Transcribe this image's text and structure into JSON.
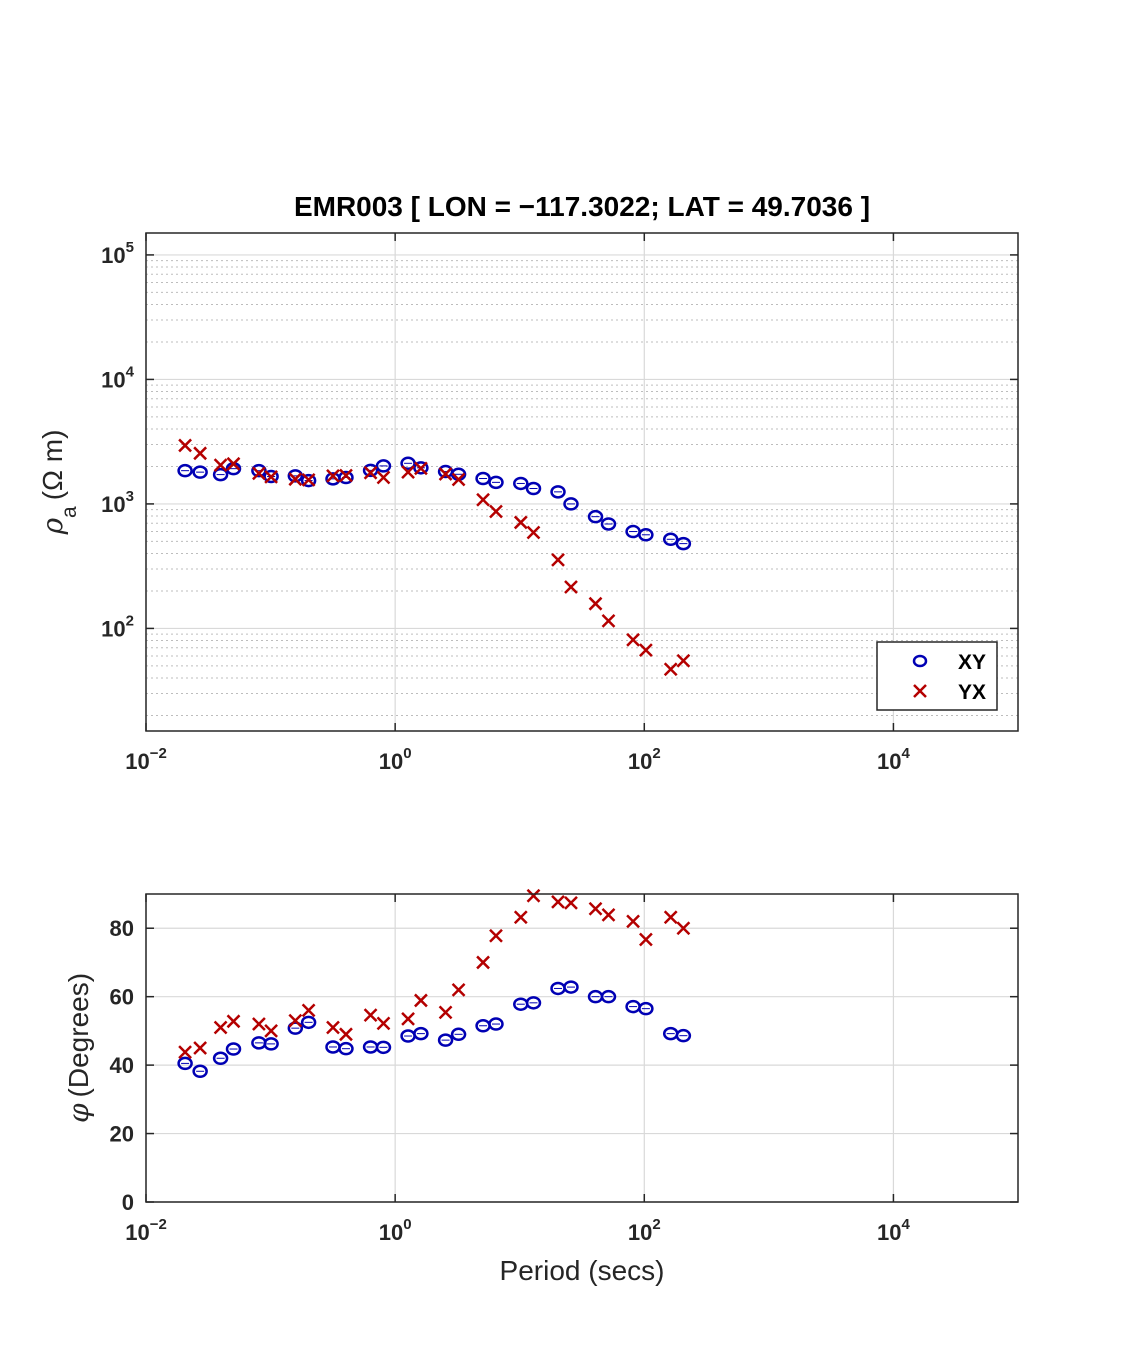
{
  "chart_data": [
    {
      "type": "scatter",
      "title": "EMR003 [ LON = −117.3022; LAT = 49.7036 ]",
      "xlabel": "",
      "ylabel_symbol": "ρ",
      "ylabel_subscript": "a",
      "ylabel_units": "(Ω m)",
      "x_scale": "log",
      "y_scale": "log",
      "xlim": [
        0.01,
        100000
      ],
      "ylim": [
        15,
        150000
      ],
      "xticks": [
        {
          "base": "10",
          "exp": "−2",
          "value": 0.01
        },
        {
          "base": "10",
          "exp": "0",
          "value": 1
        },
        {
          "base": "10",
          "exp": "2",
          "value": 100
        },
        {
          "base": "10",
          "exp": "4",
          "value": 10000
        }
      ],
      "yticks": [
        {
          "base": "10",
          "exp": "2",
          "value": 100
        },
        {
          "base": "10",
          "exp": "3",
          "value": 1000
        },
        {
          "base": "10",
          "exp": "4",
          "value": 10000
        },
        {
          "base": "10",
          "exp": "5",
          "value": 100000
        }
      ],
      "grid": true,
      "minor_grid": true,
      "legend_position": "bottom-right",
      "series": [
        {
          "name": "XY",
          "marker": "circle",
          "color": "#0000b4",
          "x": [
            0.0206,
            0.0272,
            0.0397,
            0.0504,
            0.0806,
            0.101,
            0.158,
            0.202,
            0.317,
            0.403,
            0.635,
            0.806,
            1.27,
            1.61,
            2.54,
            3.23,
            5.08,
            6.45,
            10.2,
            12.9,
            20.3,
            25.8,
            40.6,
            51.6,
            81.3,
            103,
            163,
            206
          ],
          "y": [
            1850,
            1800,
            1720,
            1920,
            1850,
            1660,
            1680,
            1540,
            1590,
            1630,
            1860,
            2020,
            2120,
            1950,
            1820,
            1730,
            1600,
            1490,
            1460,
            1330,
            1250,
            1000,
            790,
            690,
            600,
            565,
            520,
            480
          ]
        },
        {
          "name": "YX",
          "marker": "x",
          "color": "#b40000",
          "x": [
            0.0206,
            0.0272,
            0.0397,
            0.0504,
            0.0806,
            0.101,
            0.158,
            0.202,
            0.317,
            0.403,
            0.635,
            0.806,
            1.27,
            1.61,
            2.54,
            3.23,
            5.08,
            6.45,
            10.2,
            12.9,
            20.3,
            25.8,
            40.6,
            51.6,
            81.3,
            103,
            163,
            206
          ],
          "y": [
            2950,
            2550,
            2050,
            2100,
            1760,
            1650,
            1580,
            1560,
            1680,
            1690,
            1780,
            1630,
            1800,
            1930,
            1740,
            1570,
            1080,
            870,
            710,
            590,
            355,
            215,
            158,
            115,
            81,
            67,
            47,
            55
          ]
        }
      ]
    },
    {
      "type": "scatter",
      "title": "",
      "xlabel": "Period (secs)",
      "ylabel_symbol": "φ",
      "ylabel_units": "(Degrees)",
      "x_scale": "log",
      "y_scale": "linear",
      "xlim": [
        0.01,
        100000
      ],
      "ylim": [
        0,
        90
      ],
      "xticks": [
        {
          "base": "10",
          "exp": "−2",
          "value": 0.01
        },
        {
          "base": "10",
          "exp": "0",
          "value": 1
        },
        {
          "base": "10",
          "exp": "2",
          "value": 100
        },
        {
          "base": "10",
          "exp": "4",
          "value": 10000
        }
      ],
      "yticks": [
        {
          "label": "0",
          "value": 0
        },
        {
          "label": "20",
          "value": 20
        },
        {
          "label": "40",
          "value": 40
        },
        {
          "label": "60",
          "value": 60
        },
        {
          "label": "80",
          "value": 80
        }
      ],
      "grid": true,
      "series": [
        {
          "name": "XY",
          "marker": "circle",
          "color": "#0000b4",
          "x": [
            0.0206,
            0.0272,
            0.0397,
            0.0504,
            0.0806,
            0.101,
            0.158,
            0.202,
            0.317,
            0.403,
            0.635,
            0.806,
            1.27,
            1.61,
            2.54,
            3.23,
            5.08,
            6.45,
            10.2,
            12.9,
            20.3,
            25.8,
            40.6,
            51.6,
            81.3,
            103,
            163,
            206
          ],
          "y": [
            40.5,
            38.2,
            42.0,
            44.7,
            46.5,
            46.2,
            50.8,
            52.5,
            45.3,
            44.8,
            45.3,
            45.2,
            48.5,
            49.2,
            47.3,
            49.0,
            51.5,
            52.0,
            57.8,
            58.2,
            62.4,
            62.8,
            60.0,
            60.0,
            57.1,
            56.5,
            49.2,
            48.6
          ]
        },
        {
          "name": "YX",
          "marker": "x",
          "color": "#b40000",
          "x": [
            0.0206,
            0.0272,
            0.0397,
            0.0504,
            0.0806,
            0.101,
            0.158,
            0.202,
            0.317,
            0.403,
            0.635,
            0.806,
            1.27,
            1.61,
            2.54,
            3.23,
            5.08,
            6.45,
            10.2,
            12.9,
            20.3,
            25.8,
            40.6,
            51.6,
            81.3,
            103,
            163,
            206
          ],
          "y": [
            43.8,
            45.0,
            51.0,
            52.8,
            52.0,
            50.0,
            53.0,
            56.0,
            51.0,
            49.0,
            54.6,
            52.2,
            53.5,
            58.9,
            55.4,
            62.0,
            70.0,
            77.8,
            83.2,
            89.5,
            87.7,
            87.4,
            85.7,
            83.9,
            82.0,
            76.7,
            83.2,
            80.0
          ]
        }
      ]
    }
  ]
}
